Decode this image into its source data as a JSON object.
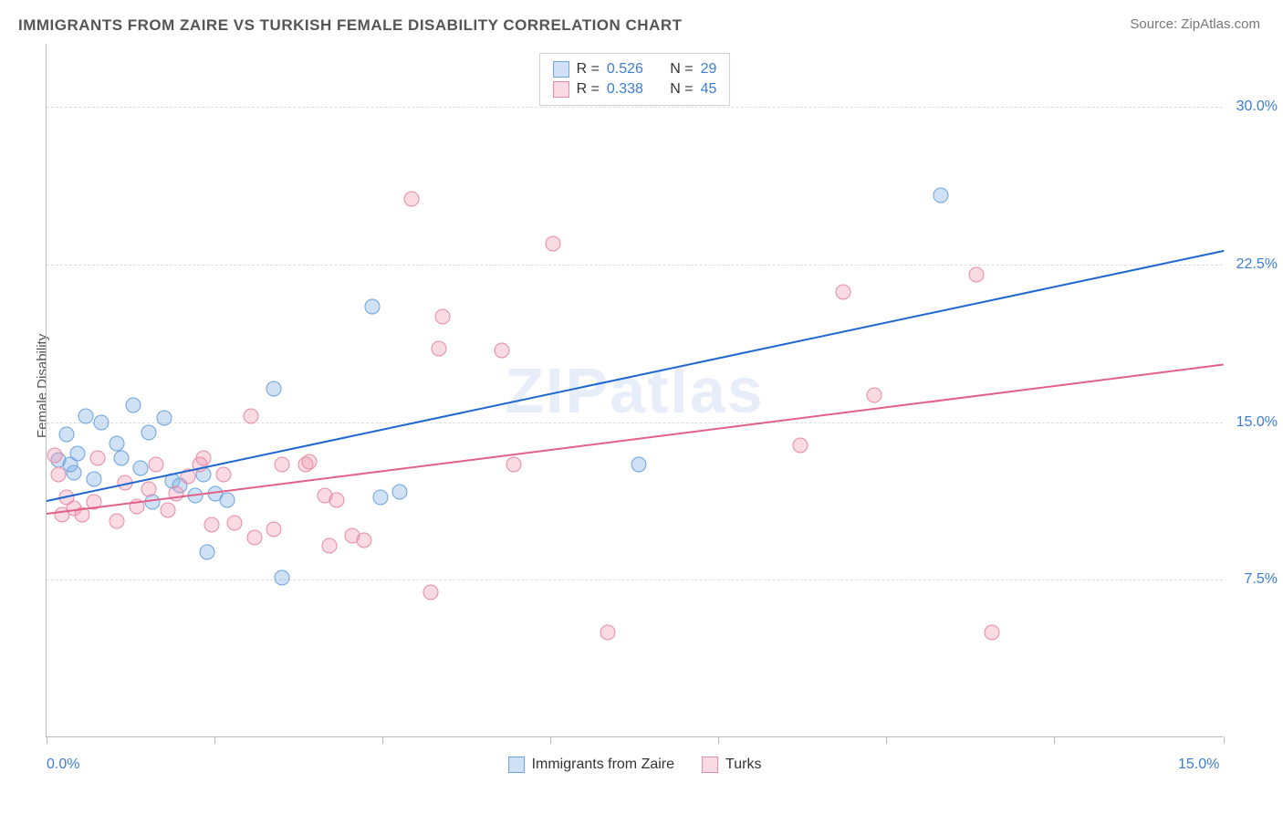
{
  "title": "IMMIGRANTS FROM ZAIRE VS TURKISH FEMALE DISABILITY CORRELATION CHART",
  "source_label": "Source:",
  "source_value": "ZipAtlas.com",
  "watermark": "ZIPatlas",
  "y_axis_label": "Female Disability",
  "chart": {
    "type": "scatter",
    "xlim": [
      0,
      15
    ],
    "ylim": [
      0,
      33
    ],
    "x_ticks": [
      0,
      2.14,
      4.28,
      6.42,
      8.56,
      10.7,
      12.84,
      15
    ],
    "x_tick_labels": {
      "0": "0.0%",
      "15": "15.0%"
    },
    "y_gridlines": [
      7.5,
      15.0,
      22.5,
      30.0
    ],
    "y_tick_labels": {
      "7.5": "7.5%",
      "15.0": "15.0%",
      "22.5": "22.5%",
      "30.0": "30.0%"
    },
    "background_color": "#ffffff",
    "grid_color": "#dddddd",
    "axis_color": "#bbbbbb",
    "tick_label_color": "#3b7dd8",
    "watermark_color": "rgba(120,160,220,0.18)",
    "point_radius": 8.5,
    "series": [
      {
        "name": "Immigrants from Zaire",
        "color_fill": "rgba(120,170,230,0.35)",
        "color_stroke": "#6aa3e0",
        "trend_color": "#1e66d0",
        "r": 0.526,
        "n": 29,
        "trend": {
          "x1": 0.0,
          "y1": 11.3,
          "x2": 15.0,
          "y2": 23.2
        },
        "points": [
          [
            0.15,
            13.2
          ],
          [
            0.25,
            14.4
          ],
          [
            0.35,
            12.6
          ],
          [
            0.3,
            13.0
          ],
          [
            0.5,
            15.3
          ],
          [
            0.7,
            15.0
          ],
          [
            0.9,
            14.0
          ],
          [
            1.1,
            15.8
          ],
          [
            1.2,
            12.8
          ],
          [
            1.3,
            14.5
          ],
          [
            1.35,
            11.2
          ],
          [
            1.5,
            15.2
          ],
          [
            1.6,
            12.2
          ],
          [
            1.9,
            11.5
          ],
          [
            2.05,
            8.8
          ],
          [
            2.15,
            11.6
          ],
          [
            1.7,
            12.0
          ],
          [
            2.0,
            12.5
          ],
          [
            2.3,
            11.3
          ],
          [
            2.9,
            16.6
          ],
          [
            3.0,
            7.6
          ],
          [
            4.15,
            20.5
          ],
          [
            4.5,
            11.7
          ],
          [
            4.25,
            11.4
          ],
          [
            7.55,
            13.0
          ],
          [
            11.4,
            25.8
          ],
          [
            0.4,
            13.5
          ],
          [
            0.6,
            12.3
          ],
          [
            0.95,
            13.3
          ]
        ]
      },
      {
        "name": "Turks",
        "color_fill": "rgba(240,150,175,0.35)",
        "color_stroke": "#e88aa5",
        "trend_color": "#e06088",
        "r": 0.338,
        "n": 45,
        "trend": {
          "x1": 0.0,
          "y1": 10.7,
          "x2": 15.0,
          "y2": 17.8
        },
        "points": [
          [
            0.1,
            13.4
          ],
          [
            0.15,
            12.5
          ],
          [
            0.2,
            10.6
          ],
          [
            0.25,
            11.4
          ],
          [
            0.35,
            10.9
          ],
          [
            0.45,
            10.6
          ],
          [
            0.6,
            11.2
          ],
          [
            0.65,
            13.3
          ],
          [
            0.9,
            10.3
          ],
          [
            1.0,
            12.1
          ],
          [
            1.15,
            11.0
          ],
          [
            1.3,
            11.8
          ],
          [
            1.4,
            13.0
          ],
          [
            1.55,
            10.8
          ],
          [
            1.65,
            11.6
          ],
          [
            1.8,
            12.4
          ],
          [
            2.0,
            13.3
          ],
          [
            2.1,
            10.1
          ],
          [
            2.25,
            12.5
          ],
          [
            2.4,
            10.2
          ],
          [
            2.6,
            15.3
          ],
          [
            2.65,
            9.5
          ],
          [
            2.9,
            9.9
          ],
          [
            3.0,
            13.0
          ],
          [
            3.3,
            13.0
          ],
          [
            3.55,
            11.5
          ],
          [
            3.6,
            9.1
          ],
          [
            3.7,
            11.3
          ],
          [
            3.9,
            9.6
          ],
          [
            4.05,
            9.4
          ],
          [
            4.65,
            25.6
          ],
          [
            4.9,
            6.9
          ],
          [
            5.0,
            18.5
          ],
          [
            5.05,
            20.0
          ],
          [
            5.8,
            18.4
          ],
          [
            5.95,
            13.0
          ],
          [
            6.45,
            23.5
          ],
          [
            7.15,
            5.0
          ],
          [
            9.6,
            13.9
          ],
          [
            10.15,
            21.2
          ],
          [
            10.55,
            16.3
          ],
          [
            11.85,
            22.0
          ],
          [
            12.05,
            5.0
          ],
          [
            1.95,
            13.0
          ],
          [
            3.35,
            13.1
          ]
        ]
      }
    ]
  },
  "legend_top": {
    "r_label": "R =",
    "n_label": "N ="
  },
  "legend_bottom": [
    {
      "label": "Immigrants from Zaire",
      "fill": "rgba(120,170,230,0.35)",
      "stroke": "#6aa3e0"
    },
    {
      "label": "Turks",
      "fill": "rgba(240,150,175,0.35)",
      "stroke": "#e88aa5"
    }
  ]
}
